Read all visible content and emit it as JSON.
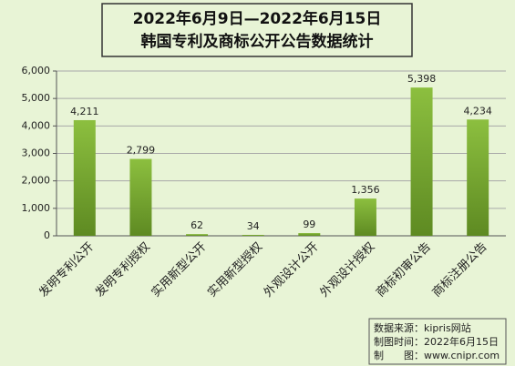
{
  "chart_data": {
    "type": "bar",
    "title": "2022年6月9日—2022年6月15日",
    "subtitle": "韩国专利及商标公开公告数据统计",
    "categories": [
      "发明专利公开",
      "发明专利授权",
      "实用新型公开",
      "实用新型授权",
      "外观设计公开",
      "外观设计授权",
      "商标初审公告",
      "商标注册公告"
    ],
    "values": [
      4211,
      2799,
      62,
      34,
      99,
      1356,
      5398,
      4234
    ],
    "value_labels": [
      "4,211",
      "2,799",
      "62",
      "34",
      "99",
      "1,356",
      "5,398",
      "4,234"
    ],
    "color": "#8cbf3f",
    "ylim": [
      0,
      6000
    ],
    "yticks": [
      0,
      {
        "value": 1000,
        "label": "1,000"
      },
      {
        "value": 2000,
        "label": "2,000"
      },
      {
        "value": 3000,
        "label": "3,000"
      },
      {
        "value": 4000,
        "label": "4,000"
      },
      {
        "value": 5000,
        "label": "5,000"
      },
      {
        "value": 6000,
        "label": "6,000"
      }
    ],
    "grid": true,
    "source_lines": [
      "数据来源：kipris网站",
      "制图时间：2022年6月15日",
      "制　　图：www.cnipr.com"
    ]
  }
}
